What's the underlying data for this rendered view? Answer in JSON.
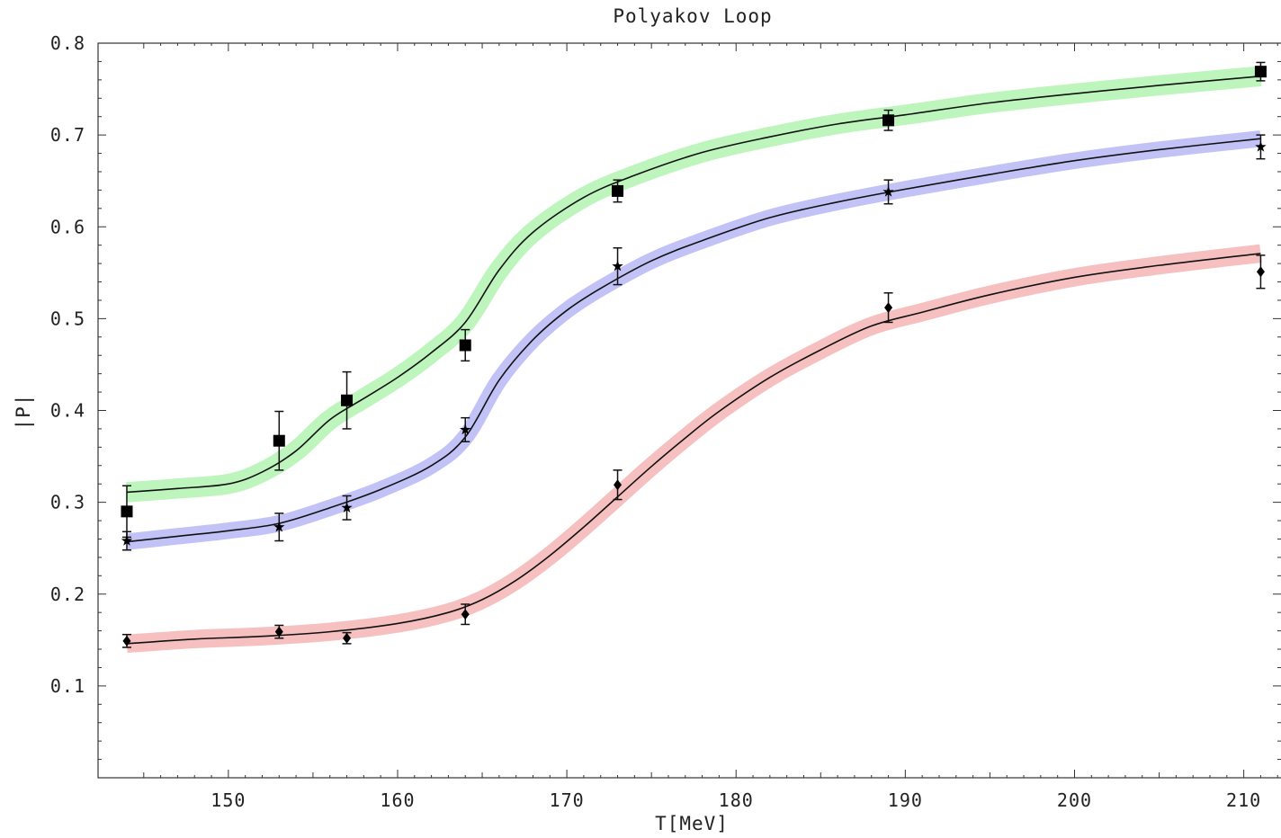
{
  "chart_data": {
    "type": "line",
    "title": "Polyakov Loop",
    "xlabel": "T[MeV]",
    "ylabel": "|P|",
    "xlim": [
      142.3,
      212.2
    ],
    "ylim": [
      0.0,
      0.8
    ],
    "xticks": [
      150,
      160,
      170,
      180,
      190,
      200,
      210
    ],
    "yticks": [
      0.1,
      0.2,
      0.3,
      0.4,
      0.5,
      0.6,
      0.7,
      0.8
    ],
    "xtick_labels": [
      "150",
      "160",
      "170",
      "180",
      "190",
      "200",
      "210"
    ],
    "ytick_labels": [
      "0.1",
      "0.2",
      "0.3",
      "0.4",
      "0.5",
      "0.6",
      "0.7",
      "0.8"
    ],
    "grid": false,
    "band_colors": [
      "#bdf5bd",
      "#c2c2f7",
      "#f7c0c0"
    ],
    "series": [
      {
        "marker": "square",
        "band_color": "#bdf5bd",
        "points": [
          {
            "x": 144,
            "y": 0.29,
            "err": 0.028
          },
          {
            "x": 153,
            "y": 0.367,
            "err": 0.032
          },
          {
            "x": 157,
            "y": 0.411,
            "err": 0.031
          },
          {
            "x": 164,
            "y": 0.471,
            "err": 0.017
          },
          {
            "x": 173,
            "y": 0.639,
            "err": 0.012
          },
          {
            "x": 189,
            "y": 0.716,
            "err": 0.011
          },
          {
            "x": 211,
            "y": 0.769,
            "err": 0.01
          }
        ],
        "fit": {
          "x": [
            144,
            147,
            150,
            152,
            154,
            156,
            158,
            160,
            162,
            164,
            166,
            168,
            171,
            174,
            178,
            182,
            186,
            190,
            195,
            200,
            205,
            211
          ],
          "y": [
            0.311,
            0.315,
            0.32,
            0.333,
            0.356,
            0.39,
            0.413,
            0.436,
            0.463,
            0.496,
            0.553,
            0.594,
            0.632,
            0.656,
            0.681,
            0.698,
            0.712,
            0.722,
            0.735,
            0.745,
            0.754,
            0.764
          ],
          "band_halfwidth": 0.011
        }
      },
      {
        "marker": "star",
        "band_color": "#c2c2f7",
        "points": [
          {
            "x": 144,
            "y": 0.258,
            "err": 0.01
          },
          {
            "x": 153,
            "y": 0.273,
            "err": 0.015
          },
          {
            "x": 157,
            "y": 0.294,
            "err": 0.013
          },
          {
            "x": 164,
            "y": 0.379,
            "err": 0.013
          },
          {
            "x": 173,
            "y": 0.557,
            "err": 0.02
          },
          {
            "x": 189,
            "y": 0.638,
            "err": 0.013
          },
          {
            "x": 211,
            "y": 0.687,
            "err": 0.013
          }
        ],
        "fit": {
          "x": [
            144,
            147,
            150,
            153,
            156,
            159,
            162,
            164,
            166,
            168,
            170,
            172,
            175,
            178,
            182,
            186,
            190,
            195,
            200,
            205,
            211
          ],
          "y": [
            0.257,
            0.263,
            0.269,
            0.277,
            0.294,
            0.314,
            0.34,
            0.371,
            0.433,
            0.477,
            0.509,
            0.533,
            0.563,
            0.585,
            0.61,
            0.627,
            0.641,
            0.657,
            0.672,
            0.684,
            0.696
          ],
          "band_halfwidth": 0.009
        }
      },
      {
        "marker": "diamond",
        "band_color": "#f7c0c0",
        "points": [
          {
            "x": 144,
            "y": 0.149,
            "err": 0.007
          },
          {
            "x": 153,
            "y": 0.159,
            "err": 0.007
          },
          {
            "x": 157,
            "y": 0.152,
            "err": 0.006
          },
          {
            "x": 164,
            "y": 0.178,
            "err": 0.011
          },
          {
            "x": 173,
            "y": 0.319,
            "err": 0.016
          },
          {
            "x": 189,
            "y": 0.512,
            "err": 0.016
          },
          {
            "x": 211,
            "y": 0.551,
            "err": 0.018
          }
        ],
        "fit": {
          "x": [
            144,
            148,
            152,
            156,
            160,
            163,
            165,
            167,
            169,
            171,
            173,
            175,
            177,
            179,
            182,
            185,
            188,
            191,
            195,
            200,
            205,
            211
          ],
          "y": [
            0.146,
            0.151,
            0.154,
            0.159,
            0.168,
            0.18,
            0.194,
            0.215,
            0.242,
            0.273,
            0.306,
            0.339,
            0.37,
            0.399,
            0.436,
            0.466,
            0.492,
            0.507,
            0.526,
            0.545,
            0.558,
            0.571
          ],
          "band_halfwidth": 0.01
        }
      }
    ]
  }
}
